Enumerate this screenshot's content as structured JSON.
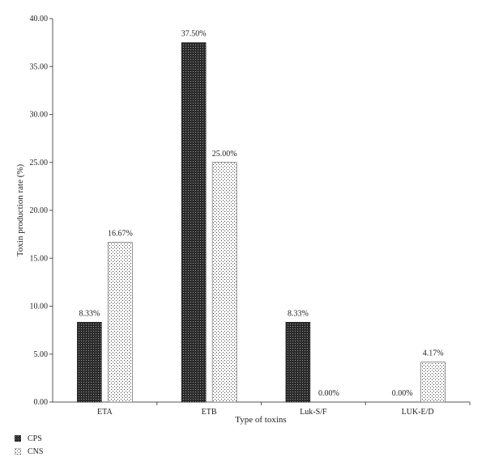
{
  "chart_data": {
    "type": "bar",
    "categories": [
      "ETA",
      "ETB",
      "Luk-S/F",
      "LUK-E/D"
    ],
    "series": [
      {
        "name": "CPS",
        "values": [
          8.33,
          37.5,
          8.33,
          0.0
        ],
        "data_labels": [
          "8.33%",
          "37.50%",
          "8.33%",
          "0.00%"
        ]
      },
      {
        "name": "CNS",
        "values": [
          16.67,
          25.0,
          0.0,
          4.17
        ],
        "data_labels": [
          "16.67%",
          "25.00%",
          "0.00%",
          "4.17%"
        ]
      }
    ],
    "title": "",
    "xlabel": "Type of toxins",
    "ylabel": "Toxin production rate (%)",
    "ylim": [
      0,
      40
    ],
    "yticks": [
      "0.00",
      "5.00",
      "10.00",
      "15.00",
      "20.00",
      "25.00",
      "30.00",
      "35.00",
      "40.00"
    ],
    "grid": false,
    "legend_position": "bottom-left"
  }
}
